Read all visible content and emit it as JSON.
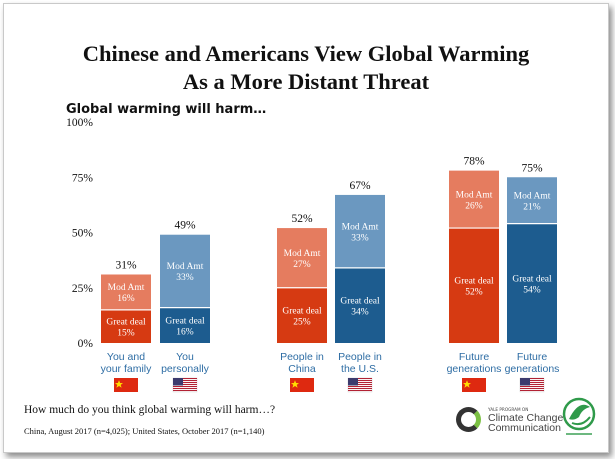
{
  "title_lines": [
    "Chinese and Americans View Global Warming",
    "As a More Distant Threat"
  ],
  "subtitle": "Global warming will harm…",
  "footnote": "How much do you think global warming will harm…?",
  "source": "China, August 2017 (n=4,025); United States, October 2017 (n=1,140)",
  "yale_logo": {
    "small": "YALE PROGRAM ON",
    "line1": "Climate Change",
    "line2": "Communication"
  },
  "colors": {
    "china_great": "#d63a12",
    "china_mod": "#e57c5f",
    "us_great": "#1d5c8f",
    "us_mod": "#6b98c0",
    "axis_text": "#111111",
    "category_text": "#2e6da4"
  },
  "chart_data": {
    "type": "bar",
    "stacked": true,
    "ylim": [
      0,
      100
    ],
    "yticks": [
      "0%",
      "25%",
      "50%",
      "75%",
      "100%"
    ],
    "grid": false,
    "categories": [
      {
        "label": [
          "You and",
          "your family"
        ],
        "country": "China",
        "flag": "china-flag"
      },
      {
        "label": [
          "You",
          "personally"
        ],
        "country": "U.S.",
        "flag": "us-flag"
      },
      {
        "label": [
          "People in",
          "China"
        ],
        "country": "China",
        "flag": "china-flag"
      },
      {
        "label": [
          "People in",
          "the U.S."
        ],
        "country": "U.S.",
        "flag": "us-flag"
      },
      {
        "label": [
          "Future",
          "generations"
        ],
        "country": "China",
        "flag": "china-flag"
      },
      {
        "label": [
          "Future",
          "generations"
        ],
        "country": "U.S.",
        "flag": "us-flag"
      }
    ],
    "series": [
      {
        "name": "Great deal",
        "values": [
          15,
          16,
          25,
          34,
          52,
          54
        ],
        "labels": [
          "15%",
          "16%",
          "25%",
          "34%",
          "52%",
          "54%"
        ]
      },
      {
        "name": "Mod Amt",
        "values": [
          16,
          33,
          27,
          33,
          26,
          21
        ],
        "labels": [
          "16%",
          "33%",
          "27%",
          "33%",
          "26%",
          "21%"
        ]
      }
    ],
    "totals": [
      "31%",
      "49%",
      "52%",
      "67%",
      "78%",
      "75%"
    ]
  }
}
